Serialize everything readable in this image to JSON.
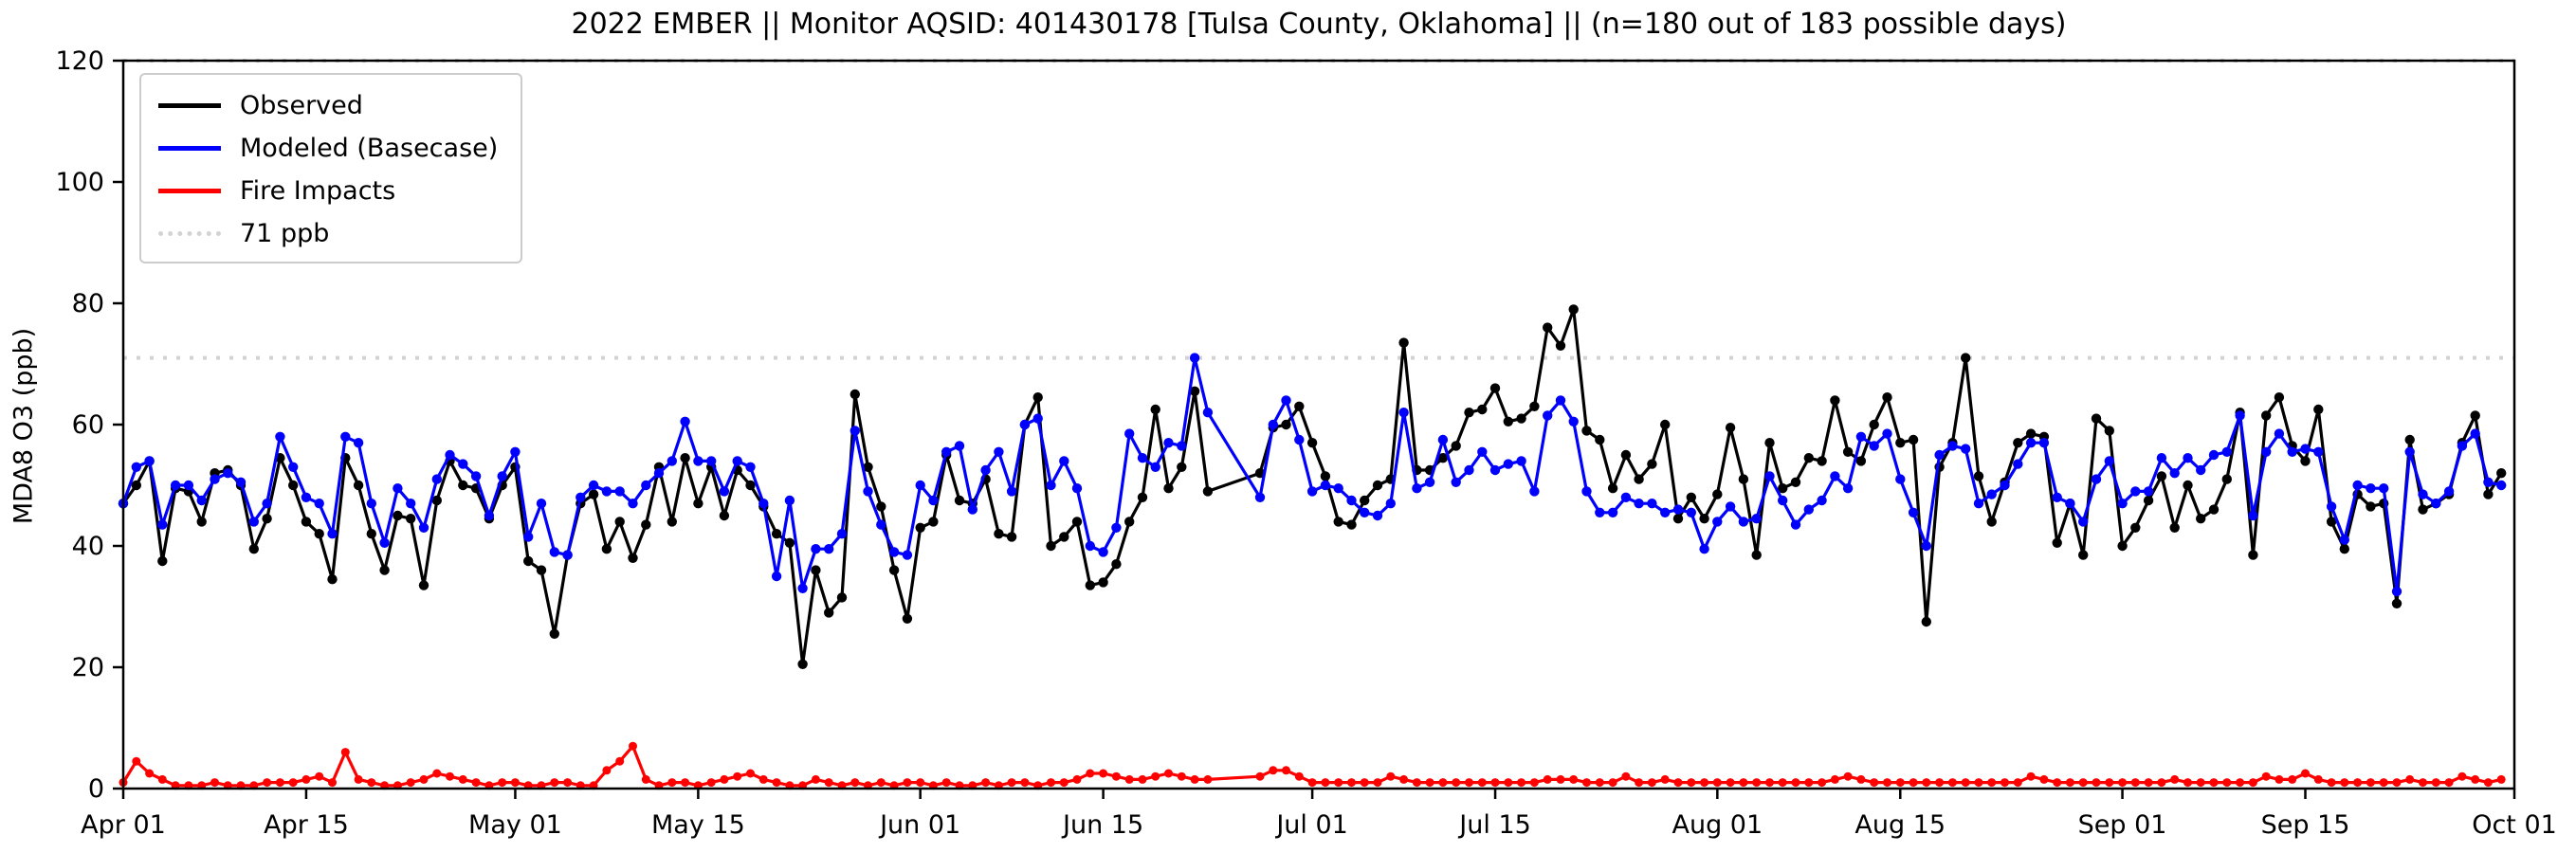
{
  "chart_data": {
    "type": "line",
    "title": "2022 EMBER || Monitor AQSID: 401430178 [Tulsa County, Oklahoma] || (n=180 out of 183 possible days)",
    "ylabel": "MDA8 O3 (ppb)",
    "xlabel": "",
    "ylim": [
      0,
      120
    ],
    "yticks": [
      0,
      20,
      40,
      60,
      80,
      100,
      120
    ],
    "grid": false,
    "legend_position": "upper left",
    "x_axis": {
      "unit": "day index from Apr 01 (0) to Oct 01 (183), daily values Apr 01 - Sep 30",
      "span_days": 183,
      "tick_days": [
        0,
        14,
        30,
        44,
        61,
        75,
        91,
        105,
        122,
        136,
        153,
        167,
        183
      ],
      "tick_labels": [
        "Apr 01",
        "Apr 15",
        "May 01",
        "May 15",
        "Jun 01",
        "Jun 15",
        "Jul 01",
        "Jul 15",
        "Aug 01",
        "Aug 15",
        "Sep 01",
        "Sep 15",
        "Oct 01"
      ]
    },
    "thresholds": [
      {
        "value": 71,
        "label": "71 ppb",
        "color": "#d3d3d3",
        "style": "dotted"
      },
      {
        "value": 120,
        "label": "",
        "color": "#d3d3d3",
        "style": "dotted"
      }
    ],
    "series": [
      {
        "name": "Observed",
        "color": "#000000",
        "marker": "circle",
        "values": [
          47,
          50,
          54,
          37.5,
          49.5,
          49,
          44,
          52,
          52.5,
          50,
          39.5,
          44.5,
          54.5,
          50,
          44,
          42,
          34.5,
          54.5,
          50,
          42,
          36,
          45,
          44.5,
          33.5,
          47.5,
          54,
          50,
          49.5,
          44.5,
          50,
          53,
          37.5,
          36,
          25.5,
          38.5,
          47,
          48.5,
          39.5,
          44,
          38,
          43.5,
          53,
          44,
          54.5,
          47,
          53,
          45,
          52.5,
          50,
          46.5,
          42,
          40.5,
          20.5,
          36,
          29,
          31.5,
          65,
          53,
          46.5,
          36,
          28,
          43,
          44,
          55,
          47.5,
          47,
          51,
          42,
          41.5,
          60,
          64.5,
          40,
          41.5,
          44,
          33.5,
          34,
          37,
          44,
          48,
          62.5,
          49.5,
          53,
          65.5,
          49,
          null,
          null,
          null,
          52,
          59.5,
          60,
          63,
          57,
          51.5,
          44,
          43.5,
          47.5,
          50,
          51,
          73.5,
          52.5,
          52.5,
          54.5,
          56.5,
          62,
          62.5,
          66,
          60.5,
          61,
          63,
          76,
          73,
          79,
          59,
          57.5,
          49.5,
          55,
          51,
          53.5,
          60,
          44.5,
          48,
          44.5,
          48.5,
          59.5,
          51,
          38.5,
          57,
          49.5,
          50.5,
          54.5,
          54,
          64,
          55.5,
          54,
          60,
          64.5,
          57,
          57.5,
          27.5,
          53,
          57,
          71,
          51.5,
          44,
          50.5,
          57,
          58.5,
          58,
          40.5,
          47,
          38.5,
          61,
          59,
          40,
          43,
          47.5,
          51.5,
          43,
          50,
          44.5,
          46,
          51,
          62,
          38.5,
          61.5,
          64.5,
          56.5,
          54,
          62.5,
          44,
          39.5,
          48.5,
          46.5,
          47,
          30.5,
          57.5,
          46,
          47,
          48.5,
          57,
          61.5,
          48.5,
          52
        ]
      },
      {
        "name": "Modeled (Basecase)",
        "color": "#0000ff",
        "marker": "circle",
        "values": [
          47,
          53,
          54,
          43.5,
          50,
          50,
          47.5,
          51,
          52,
          50.5,
          44,
          47,
          58,
          53,
          48,
          47,
          42,
          58,
          57,
          47,
          40.5,
          49.5,
          47,
          43,
          51,
          55,
          53.5,
          51.5,
          45,
          51.5,
          55.5,
          41.5,
          47,
          39,
          38.5,
          48,
          50,
          49,
          49,
          47,
          50,
          52,
          54,
          60.5,
          54,
          54,
          49,
          54,
          53,
          47,
          35,
          47.5,
          33,
          39.5,
          39.5,
          42,
          59,
          49,
          43.5,
          39,
          38.5,
          50,
          47.5,
          55.5,
          56.5,
          46,
          52.5,
          55.5,
          49,
          60,
          61,
          50,
          54,
          49.5,
          40,
          39,
          43,
          58.5,
          54.5,
          53,
          57,
          56.5,
          71,
          62,
          null,
          null,
          null,
          48,
          60,
          64,
          57.5,
          49,
          50,
          49.5,
          47.5,
          45.5,
          45,
          47,
          62,
          49.5,
          50.5,
          57.5,
          50.5,
          52.5,
          55.5,
          52.5,
          53.5,
          54,
          49,
          61.5,
          64,
          60.5,
          49,
          45.5,
          45.5,
          48,
          47,
          47,
          45.5,
          46,
          45.5,
          39.5,
          44,
          46.5,
          44,
          44.5,
          51.5,
          47.5,
          43.5,
          46,
          47.5,
          51.5,
          49.5,
          58,
          56.5,
          58.5,
          51,
          45.5,
          40,
          55,
          56.5,
          56,
          47,
          48.5,
          50,
          53.5,
          57,
          57,
          48,
          47,
          44,
          51,
          54,
          47,
          49,
          49,
          54.5,
          52,
          54.5,
          52.5,
          55,
          55.5,
          61.5,
          45,
          55.5,
          58.5,
          55.5,
          56,
          55.5,
          46.5,
          41,
          50,
          49.5,
          49.5,
          32.5,
          55.5,
          48.5,
          47,
          49,
          56.5,
          58.5,
          50.5,
          50
        ]
      },
      {
        "name": "Fire Impacts",
        "color": "#ff0000",
        "marker": "circle",
        "values": [
          1,
          4.5,
          2.5,
          1.5,
          0.5,
          0.5,
          0.5,
          1,
          0.5,
          0.5,
          0.5,
          1,
          1,
          1,
          1.5,
          2,
          1,
          6,
          1.5,
          1,
          0.5,
          0.5,
          1,
          1.5,
          2.5,
          2,
          1.5,
          1,
          0.5,
          1,
          1,
          0.5,
          0.5,
          1,
          1,
          0.5,
          0.5,
          3,
          4.5,
          7,
          1.5,
          0.5,
          1,
          1,
          0.5,
          1,
          1.5,
          2,
          2.5,
          1.5,
          1,
          0.5,
          0.5,
          1.5,
          1,
          0.5,
          1,
          0.5,
          1,
          0.5,
          1,
          1,
          0.5,
          1,
          0.5,
          0.5,
          1,
          0.5,
          1,
          1,
          0.5,
          1,
          1,
          1.5,
          2.5,
          2.5,
          2,
          1.5,
          1.5,
          2,
          2.5,
          2,
          1.5,
          1.5,
          null,
          null,
          null,
          2,
          3,
          3,
          2,
          1,
          1,
          1,
          1,
          1,
          1,
          2,
          1.5,
          1,
          1,
          1,
          1,
          1,
          1,
          1,
          1,
          1,
          1,
          1.5,
          1.5,
          1.5,
          1,
          1,
          1,
          2,
          1,
          1,
          1.5,
          1,
          1,
          1,
          1,
          1,
          1,
          1,
          1,
          1,
          1,
          1,
          1,
          1.5,
          2,
          1.5,
          1,
          1,
          1,
          1,
          1,
          1,
          1,
          1,
          1,
          1,
          1,
          1,
          2,
          1.5,
          1,
          1,
          1,
          1,
          1,
          1,
          1,
          1,
          1,
          1.5,
          1,
          1,
          1,
          1,
          1,
          1,
          2,
          1.5,
          1.5,
          2.5,
          1.5,
          1,
          1,
          1,
          1,
          1,
          1,
          1.5,
          1,
          1,
          1,
          2,
          1.5,
          1,
          1.5
        ]
      }
    ]
  }
}
